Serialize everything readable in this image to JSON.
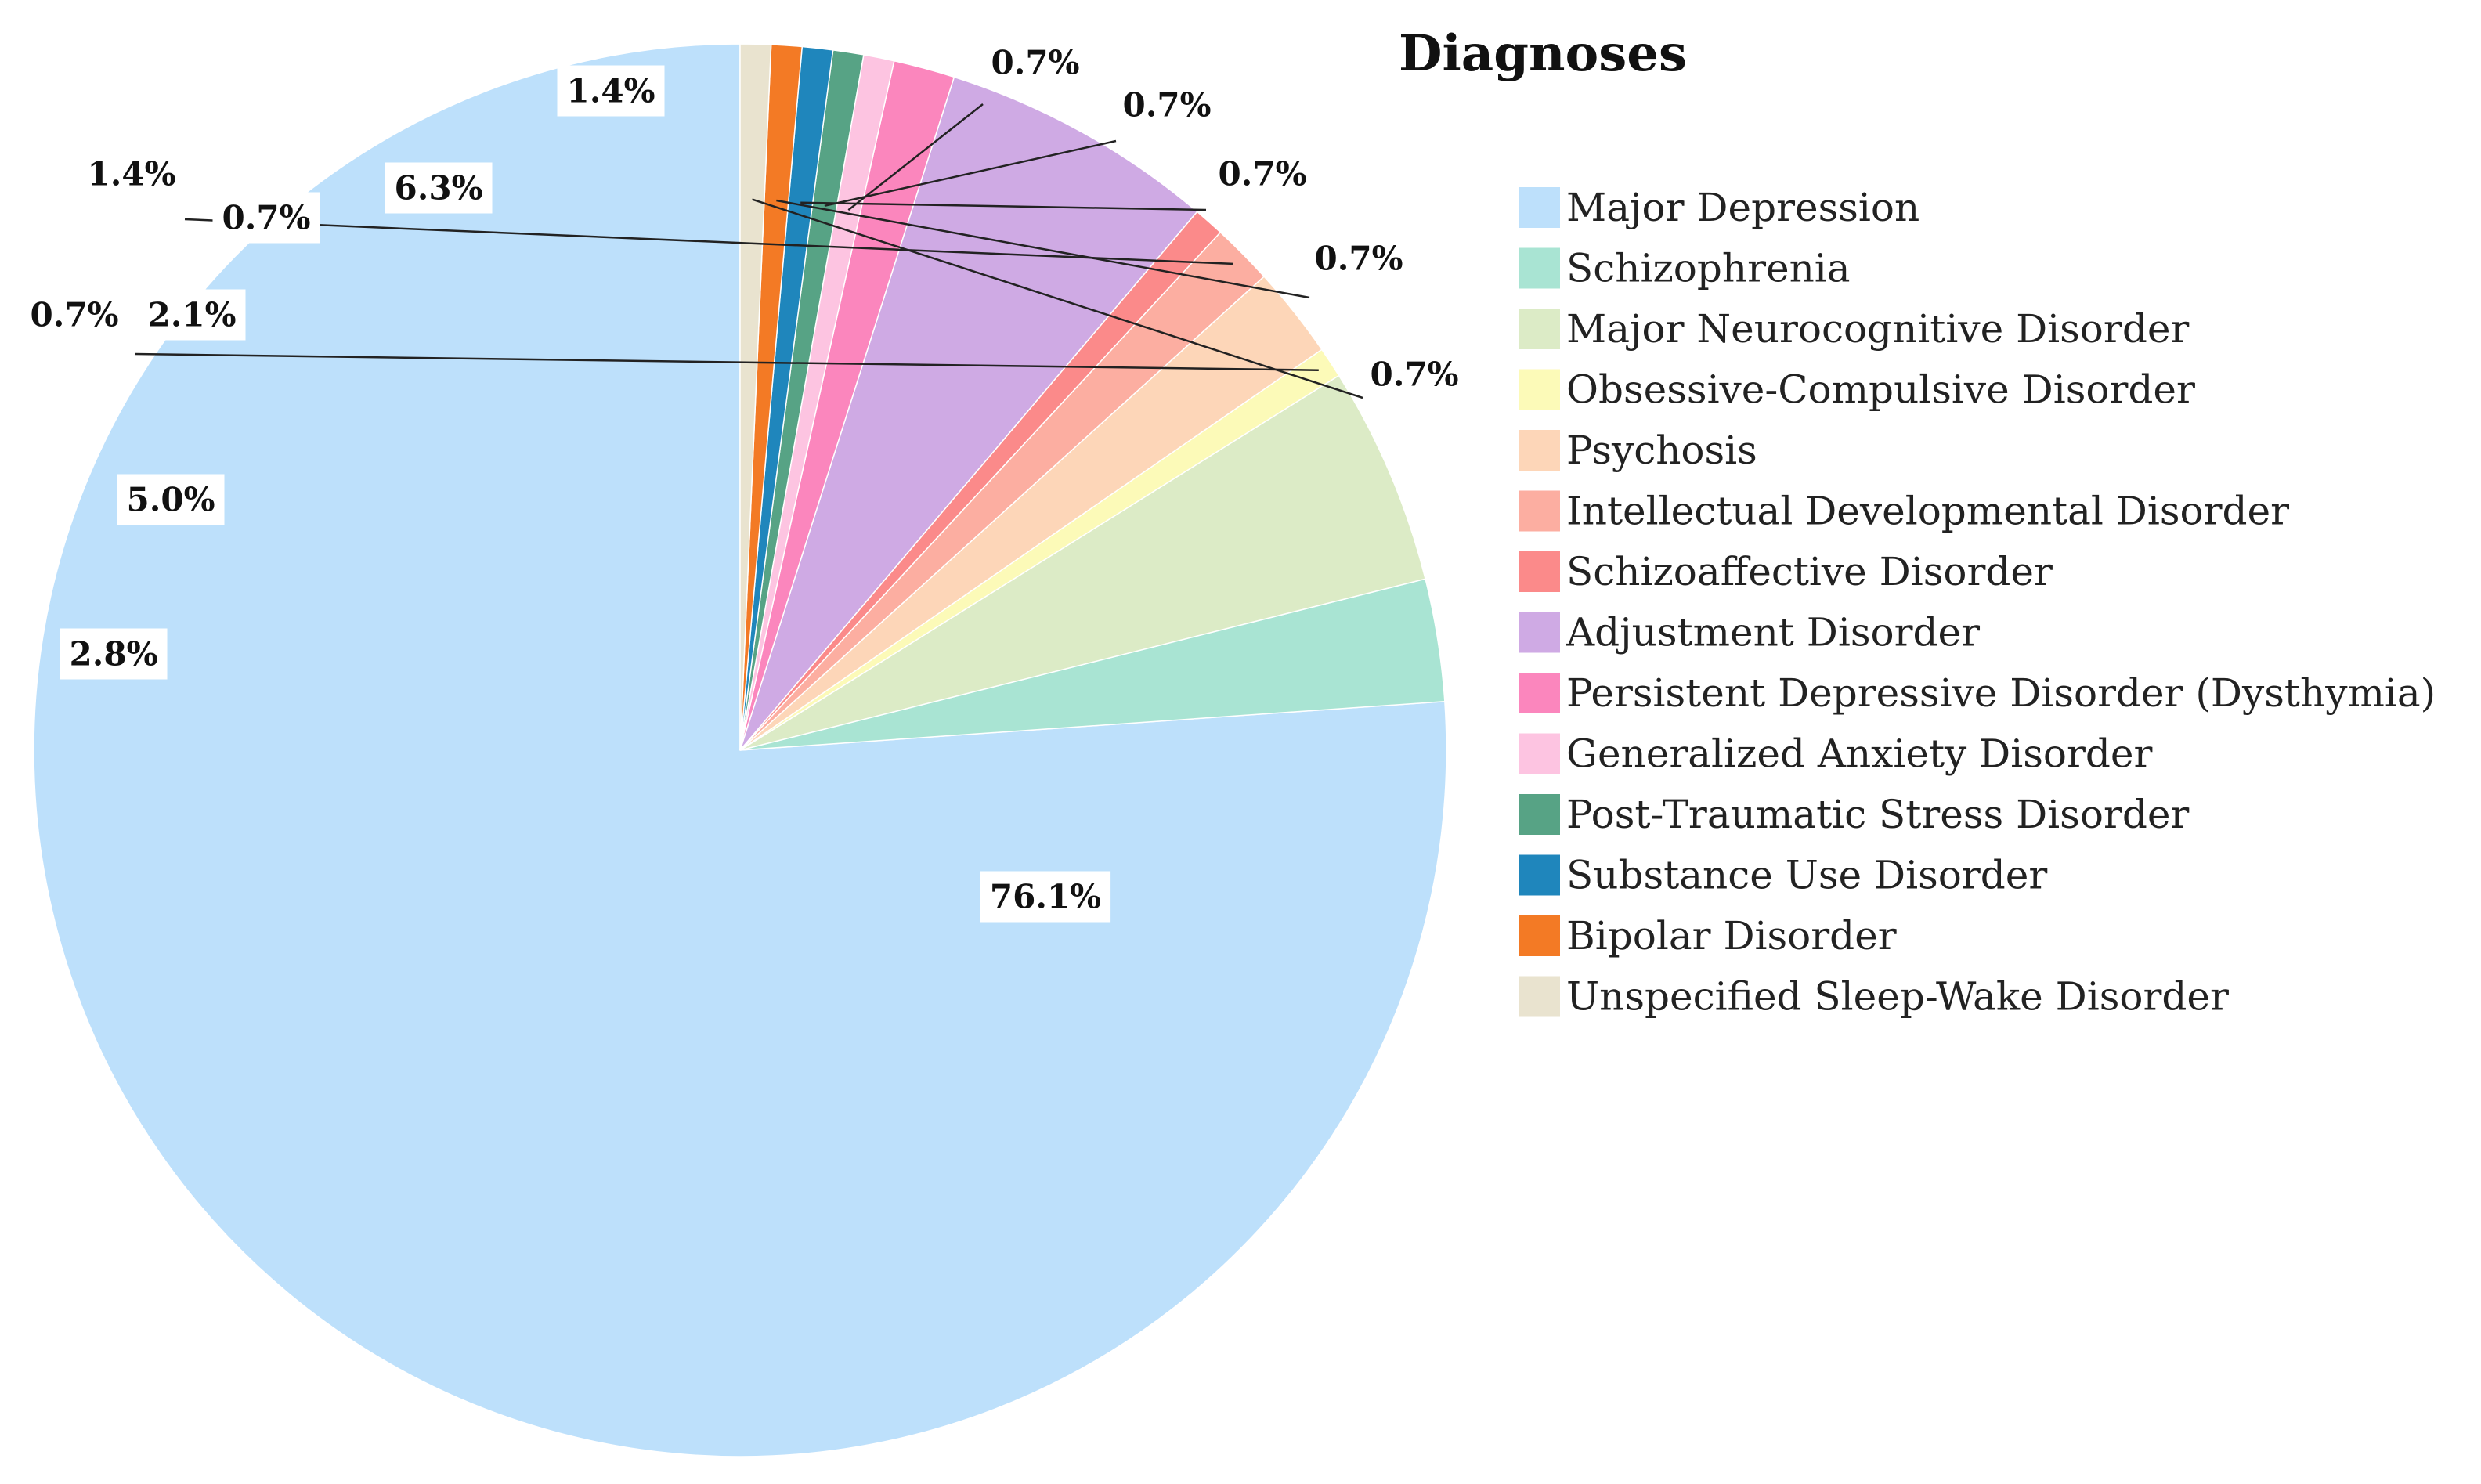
{
  "chart_data": {
    "type": "pie",
    "title": "Diagnoses",
    "legend_position": "right",
    "slices": [
      {
        "label": "Major Depression",
        "value": 76.1,
        "value_label": "76.1%",
        "color": "#bde0fb"
      },
      {
        "label": "Schizophrenia",
        "value": 2.8,
        "value_label": "2.8%",
        "color": "#a9e4d3"
      },
      {
        "label": "Major Neurocognitive Disorder",
        "value": 5.0,
        "value_label": "5.0%",
        "color": "#dcebc6"
      },
      {
        "label": "Obsessive-Compulsive Disorder",
        "value": 0.7,
        "value_label": "0.7%",
        "color": "#fcfab8"
      },
      {
        "label": "Psychosis",
        "value": 2.1,
        "value_label": "2.1%",
        "color": "#fdd6b8"
      },
      {
        "label": "Intellectual Developmental Disorder",
        "value": 1.4,
        "value_label": "1.4%",
        "color": "#fcaea1"
      },
      {
        "label": "Schizoaffective Disorder",
        "value": 0.7,
        "value_label": "0.7%",
        "color": "#fb8a8a"
      },
      {
        "label": "Adjustment Disorder",
        "value": 6.3,
        "value_label": "6.3%",
        "color": "#cfaae4"
      },
      {
        "label": "Persistent Depressive Disorder (Dysthymia)",
        "value": 1.4,
        "value_label": "1.4%",
        "color": "#fb86bd"
      },
      {
        "label": "Generalized Anxiety Disorder",
        "value": 0.7,
        "value_label": "0.7%",
        "color": "#fdc4e1"
      },
      {
        "label": "Post-Traumatic Stress Disorder",
        "value": 0.7,
        "value_label": "0.7%",
        "color": "#57a385"
      },
      {
        "label": "Substance Use Disorder",
        "value": 0.7,
        "value_label": "0.7%",
        "color": "#1f86bc"
      },
      {
        "label": "Bipolar Disorder",
        "value": 0.7,
        "value_label": "0.7%",
        "color": "#f37a25"
      },
      {
        "label": "Unspecified Sleep-Wake Disorder",
        "value": 0.7,
        "value_label": "0.7%",
        "color": "#e9e3cf"
      }
    ]
  }
}
